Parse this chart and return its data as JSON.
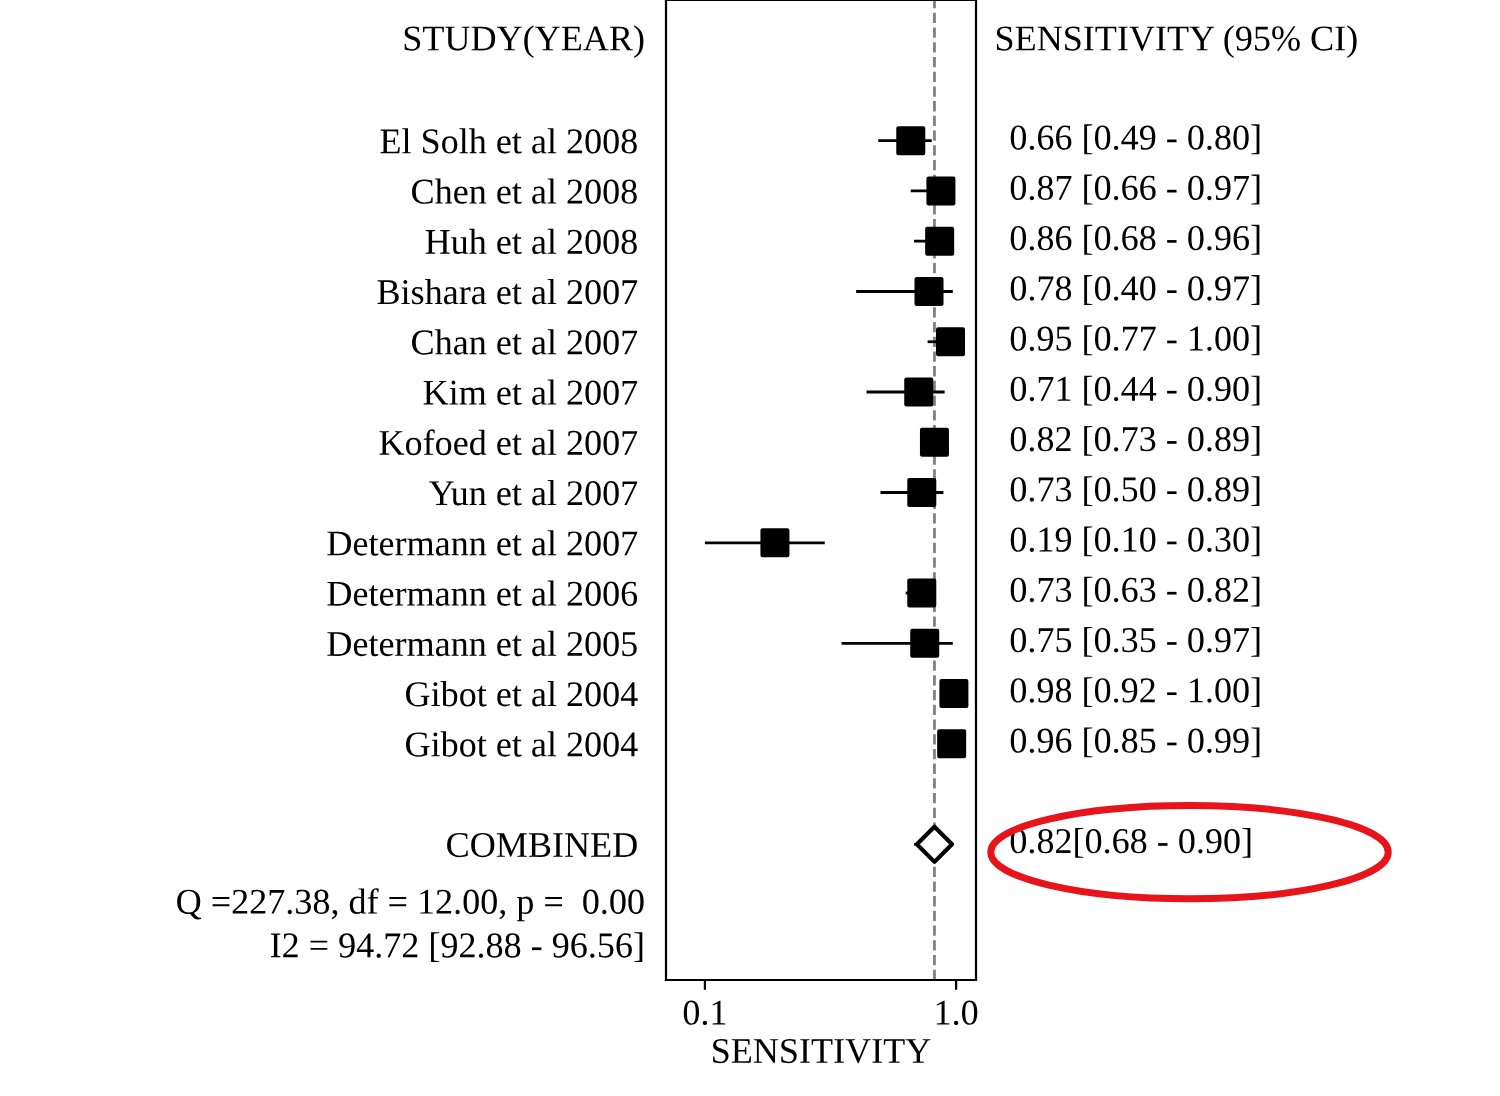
{
  "chart_data": {
    "type": "scatter",
    "orientation": "horizontal",
    "xlabel": "SENSITIVITY",
    "categories": [
      "El Solh et al 2008",
      "Chen et al 2008",
      "Huh et al 2008",
      "Bishara et al 2007",
      "Chan et al 2007",
      "Kim et al 2007",
      "Kofoed et al 2007",
      "Yun et al 2007",
      "Determann et al 2007",
      "Determann et al 2006",
      "Determann et al 2005",
      "Gibot et al 2004",
      "Gibot et al 2004",
      null,
      "COMBINED"
    ],
    "series": [
      {
        "color": "#000000",
        "marker": "square",
        "values": [
          0.66,
          0.87,
          0.86,
          0.78,
          0.95,
          0.71,
          0.82,
          0.73,
          0.19,
          0.73,
          0.75,
          0.98,
          0.96,
          null,
          null
        ],
        "errors": [
          [
            0.49,
            0.8
          ],
          [
            0.66,
            0.97
          ],
          [
            0.68,
            0.96
          ],
          [
            0.4,
            0.97
          ],
          [
            0.77,
            0.95
          ],
          [
            0.44,
            0.9
          ],
          [
            0.73,
            0.89
          ],
          [
            0.5,
            0.89
          ],
          [
            0.1,
            0.3
          ],
          [
            0.63,
            0.82
          ],
          [
            0.35,
            0.97
          ],
          null,
          [
            0.85,
            0.96
          ],
          null,
          null
        ],
        "value_labels": [
          "0.66 [0.49 - 0.80]",
          "0.87 [0.66 - 0.97]",
          "0.86 [0.68 - 0.96]",
          "0.78 [0.40 - 0.97]",
          "0.95 [0.77 - 1.00]",
          "0.71 [0.44 - 0.90]",
          "0.82 [0.73 - 0.89]",
          "0.73 [0.50 - 0.89]",
          "0.19 [0.10 - 0.30]",
          "0.73 [0.63 - 0.82]",
          "0.75 [0.35 - 0.97]",
          "0.98 [0.92 - 1.00]",
          "0.96 [0.85 - 0.99]",
          null,
          null
        ]
      },
      {
        "color": "#000000",
        "marker": "diamond",
        "values": [
          null,
          null,
          null,
          null,
          null,
          null,
          null,
          null,
          null,
          null,
          null,
          null,
          null,
          null,
          0.82
        ],
        "errors": [
          null,
          null,
          null,
          null,
          null,
          null,
          null,
          null,
          null,
          null,
          null,
          null,
          null,
          null,
          [
            0.68,
            0.9
          ]
        ],
        "value_labels": [
          null,
          null,
          null,
          null,
          null,
          null,
          null,
          null,
          null,
          null,
          null,
          null,
          null,
          null,
          "0.82[0.68 - 0.90]"
        ]
      }
    ],
    "log": "x",
    "xlim": [
      0.07,
      1.2
    ],
    "xticks": [
      0.1,
      {
        "value": 1.0,
        "label": "1.0"
      }
    ],
    "ref_lines": [
      {
        "axis": "x",
        "value": 0.82,
        "line_style": "dashed",
        "color": "#808080"
      }
    ],
    "grid": false,
    "legend": false,
    "annotations": [
      "STUDY(YEAR)",
      "SENSITIVITY (95% CI)",
      "Q =227.38, df = 12.00, p =  0.00",
      "I2 = 94.72 [92.88 - 96.56]"
    ]
  }
}
